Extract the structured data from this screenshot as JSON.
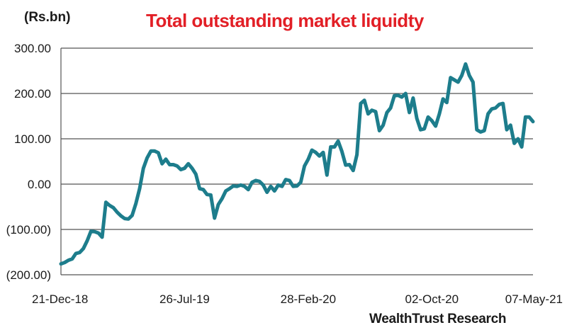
{
  "header": {
    "unit_label": "(Rs.bn)",
    "title": "Total outstanding market liquidty"
  },
  "footer": {
    "source": "WealthTrust Research"
  },
  "colors": {
    "title": "#e21f26",
    "series": "#1d7d8c",
    "grid": "#555555",
    "text": "#1a1a1a"
  },
  "chart_data": {
    "type": "line",
    "title": "Total outstanding market liquidty",
    "ylabel": "(Rs.bn)",
    "xlabel": "",
    "ylim": [
      -200,
      300
    ],
    "grid": true,
    "y_ticks": [
      300,
      200,
      100,
      0,
      -100,
      -200
    ],
    "y_tick_labels": [
      "300.00",
      "200.00",
      "100.00",
      "0.00",
      "(100.00)",
      "(200.00)"
    ],
    "x_tick_labels": [
      "21-Dec-18",
      "26-Jul-19",
      "28-Feb-20",
      "02-Oct-20",
      "07-May-21"
    ],
    "x_tick_positions": [
      0,
      33,
      66,
      99,
      132
    ],
    "series": [
      {
        "values": [
          -176,
          -173,
          -168,
          -165,
          -153,
          -151,
          -142,
          -125,
          -104,
          -105,
          -108,
          -117,
          -40,
          -47,
          -52,
          -62,
          -70,
          -76,
          -77,
          -69,
          -43,
          -10,
          35,
          58,
          73,
          73,
          69,
          45,
          55,
          43,
          43,
          40,
          32,
          35,
          45,
          35,
          22,
          -10,
          -12,
          -23,
          -24,
          -75,
          -45,
          -32,
          -15,
          -10,
          -4,
          -5,
          -2,
          -5,
          -12,
          4,
          8,
          6,
          -2,
          -18,
          -5,
          -15,
          -2,
          -5,
          10,
          8,
          -5,
          -4,
          4,
          40,
          55,
          75,
          70,
          62,
          70,
          20,
          82,
          82,
          95,
          72,
          42,
          43,
          30,
          65,
          178,
          185,
          155,
          163,
          160,
          118,
          130,
          158,
          168,
          195,
          196,
          192,
          200,
          158,
          190,
          145,
          120,
          122,
          148,
          140,
          128,
          155,
          188,
          180,
          235,
          230,
          225,
          240,
          265,
          240,
          225,
          120,
          115,
          118,
          155,
          166,
          168,
          176,
          178,
          120,
          130,
          90,
          100,
          82,
          148,
          148,
          138
        ]
      }
    ]
  }
}
